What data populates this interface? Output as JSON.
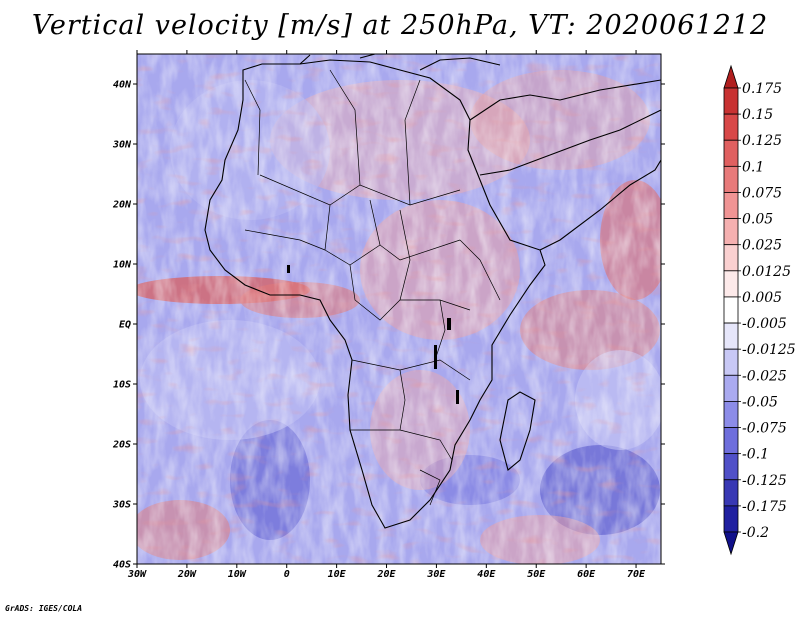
{
  "title": "Vertical velocity [m/s] at 250hPa, VT: 2020061212",
  "credit": "GrADS: IGES/COLA",
  "map": {
    "lat_labels": [
      "40N",
      "30N",
      "20N",
      "10N",
      "EQ",
      "10S",
      "20S",
      "30S",
      "40S"
    ],
    "lon_labels": [
      "30W",
      "20W",
      "10W",
      "0",
      "10E",
      "20E",
      "30E",
      "40E",
      "50E",
      "60E",
      "70E"
    ],
    "lon_range": [
      -30,
      75
    ],
    "lat_range": [
      -40,
      45
    ]
  },
  "colorbar": {
    "levels": [
      "0.175",
      "0.15",
      "0.125",
      "0.1",
      "0.075",
      "0.05",
      "0.025",
      "0.0125",
      "0.005",
      "-0.005",
      "-0.0125",
      "-0.025",
      "-0.05",
      "-0.075",
      "-0.1",
      "-0.125",
      "-0.175",
      "-0.2"
    ],
    "colors": [
      "#b01e1e",
      "#c83232",
      "#d84848",
      "#e06060",
      "#e87a7a",
      "#f09494",
      "#f5b0b0",
      "#fad0d0",
      "#fdeaea",
      "#ffffff",
      "#e6e6fa",
      "#c8c8f5",
      "#aaaaf0",
      "#8c8ce8",
      "#6e6edc",
      "#5050c8",
      "#3838b4",
      "#2020a0",
      "#10108a"
    ]
  }
}
